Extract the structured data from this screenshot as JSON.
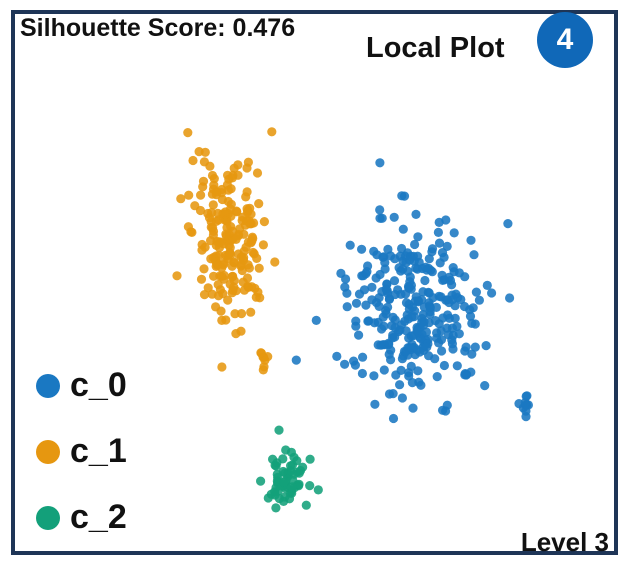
{
  "header": {
    "silhouette_label": "Silhouette Score: 0.476",
    "plot_title": "Local Plot",
    "badge_number": "4",
    "badge_color": "#1068b8",
    "footer_level": "Level 3"
  },
  "chart_data": {
    "type": "scatter",
    "title": "",
    "xlabel": "",
    "ylabel": "",
    "axes_shown": false,
    "grid": false,
    "legend_position": "bottom-left",
    "series": [
      {
        "name": "c_0",
        "color": "#1a78c2",
        "clusters": [
          {
            "center": [
              415,
              310
            ],
            "spread": [
              55,
              70
            ],
            "count": 300
          },
          {
            "center": [
              525,
              405
            ],
            "spread": [
              6,
              8
            ],
            "count": 10
          }
        ]
      },
      {
        "name": "c_1",
        "color": "#e69710",
        "clusters": [
          {
            "center": [
              230,
              235
            ],
            "spread": [
              30,
              65
            ],
            "count": 200
          },
          {
            "center": [
              262,
              360
            ],
            "spread": [
              7,
              10
            ],
            "count": 8
          }
        ]
      },
      {
        "name": "c_2",
        "color": "#13a07a",
        "clusters": [
          {
            "center": [
              285,
              480
            ],
            "spread": [
              17,
              20
            ],
            "count": 60
          }
        ]
      }
    ]
  }
}
